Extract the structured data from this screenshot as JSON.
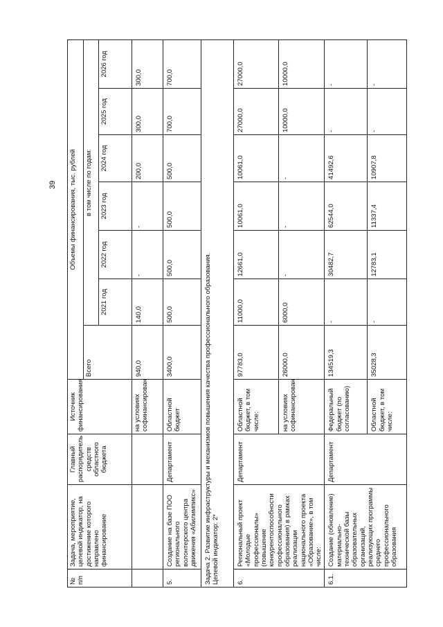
{
  "page_number": "39",
  "header": {
    "num": "№ п/п",
    "task": "Задача, мероприятие, целевой индикатор, на достижение которого направлено финансирование",
    "manager": "Главный распорядитель средств областного бюджета",
    "source": "Источник финансирования",
    "volumes": "Объемы финансирования, тыс. рублей",
    "total": "Всего",
    "by_years": "в том числе по годам:",
    "years": [
      "2021 год",
      "2022 год",
      "2023 год",
      "2024 год",
      "2025 год",
      "2026 год"
    ]
  },
  "rows": [
    {
      "num": "",
      "task": "",
      "manager": "",
      "source": "на условиях софинансирования",
      "total": "940,0",
      "values": [
        "140,0",
        "-",
        "-",
        "200,0",
        "300,0",
        "300,0"
      ]
    },
    {
      "num": "5.",
      "task": "Создание на базе ПОО регионального волонтерского центра движения «Абилимпикс»",
      "manager": "Департамент",
      "source": "Областной бюджет",
      "total": "3400,0",
      "values": [
        "500,0",
        "500,0",
        "500,0",
        "500,0",
        "700,0",
        "700,0"
      ]
    }
  ],
  "task2": {
    "line1": "Задача 2. Развитие инфраструктуры и механизмов повышения качества профессионального образования.",
    "line2": "Целевой индикатор: 2*"
  },
  "row6": {
    "num": "6.",
    "task": "Региональный проект «Молодые профессионалы» (повышение конкурентоспособности профессионального образования) в рамках реализации национального проекта «Образование», в том числе:",
    "manager": "Департамент",
    "sub": [
      {
        "source": "Областной бюджет, в том числе:",
        "total": "97783,0",
        "values": [
          "11000,0",
          "12661,0",
          "10061,0",
          "10061,0",
          "27000,0",
          "27000,0"
        ]
      },
      {
        "source": "на условиях софинансирования",
        "total": "26000,0",
        "values": [
          "6000,0",
          "-",
          "-",
          "-",
          "10000,0",
          "10000,0"
        ]
      }
    ]
  },
  "row61": {
    "num": "6.1.",
    "task": "Создание (обновление) материально-технической базы образовательных организаций, реализующих программы среднего профессионального образования",
    "manager": "Департамент",
    "sub": [
      {
        "source": "Федеральный бюджет (по согласованию)",
        "total": "134519,3",
        "values": [
          "-",
          "30482,7",
          "62544,0",
          "41492,6",
          "-",
          "-"
        ]
      },
      {
        "source": "Областной бюджет, в том числе:",
        "total": "35028,3",
        "values": [
          "-",
          "12783,1",
          "11337,4",
          "10907,8",
          "-",
          "-"
        ]
      }
    ]
  }
}
